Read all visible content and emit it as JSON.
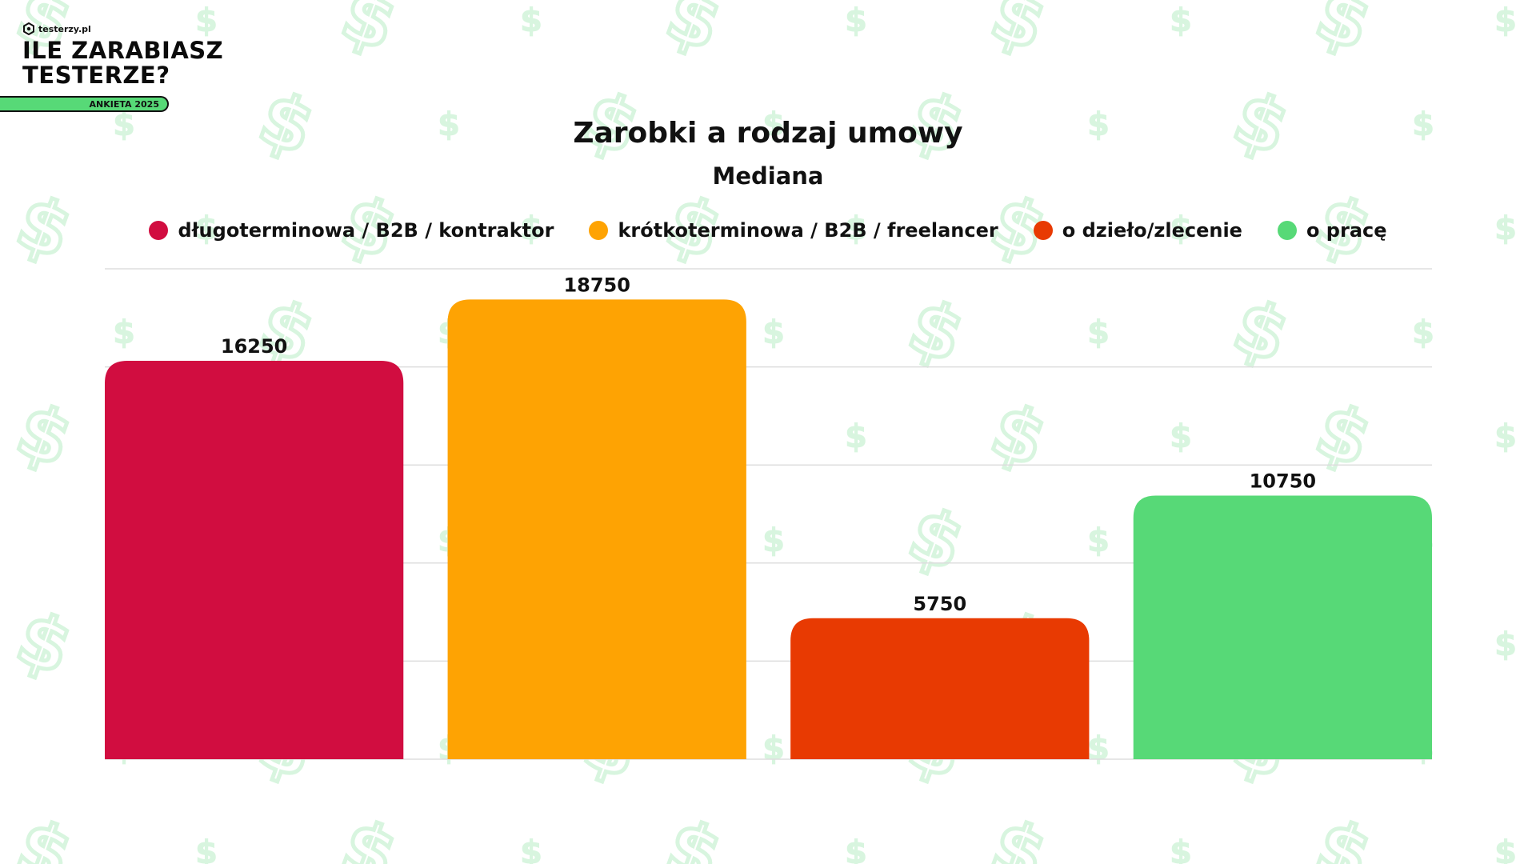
{
  "brand": {
    "logo_text": "testerzy.pl",
    "title_line1": "ILE ZARABIASZ",
    "title_line2": "TESTERZE?",
    "badge": "ANKIETA 2025"
  },
  "icons": {
    "logo": "testerzy-logo-icon",
    "background": "dollar-sign-icon"
  },
  "colors": {
    "accent": "#57d977",
    "pattern": "#d8f5df"
  },
  "chart_data": {
    "type": "bar",
    "title": "Zarobki a rodzaj umowy",
    "subtitle": "Mediana",
    "categories": [
      "długoterminowa / B2B / kontraktor",
      "krótkoterminowa / B2B / freelancer",
      "o dzieło/zlecenie",
      "o pracę"
    ],
    "values": [
      16250,
      18750,
      5750,
      10750
    ],
    "value_labels": [
      "16250",
      "18750",
      "5750",
      "10750"
    ],
    "colors": [
      "#d10d40",
      "#fea303",
      "#e83a02",
      "#57d977"
    ],
    "ylim": [
      0,
      20000
    ],
    "grid": true,
    "legend_position": "top"
  }
}
